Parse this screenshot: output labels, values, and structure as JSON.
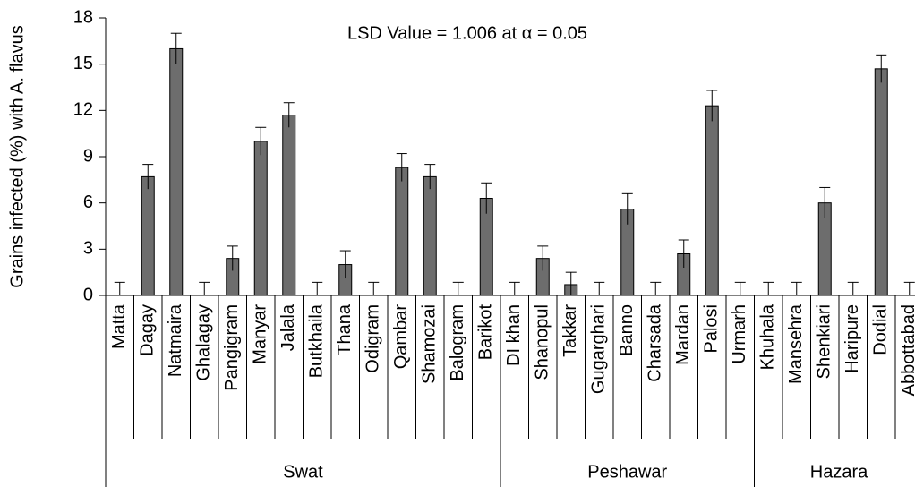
{
  "chart_data": {
    "type": "bar",
    "annotation": "LSD Value = 1.006 at α = 0.05",
    "y_label": "Grains infected (%) with A. flavus",
    "ylim": [
      0,
      18
    ],
    "yticks": [
      0,
      3,
      6,
      9,
      12,
      15,
      18
    ],
    "color": "#6d6d6d",
    "groups": [
      {
        "label": "Swat",
        "categories": [
          "Matta",
          "Dagay",
          "Natmaira",
          "Ghalagay",
          "Pangigram",
          "Manyar",
          "Jalala",
          "Butkhaila",
          "Thana",
          "Odigram",
          "Qambar",
          "Shamozai",
          "Balogram",
          "Barikot"
        ],
        "values": [
          0,
          7.7,
          16,
          0,
          2.4,
          10,
          11.7,
          0,
          2,
          0,
          8.3,
          7.7,
          0,
          6.3
        ],
        "errors": [
          0.85,
          0.8,
          1.0,
          0.85,
          0.8,
          0.9,
          0.8,
          0.85,
          0.9,
          0.85,
          0.9,
          0.8,
          0.85,
          1.0
        ]
      },
      {
        "label": "Peshawar",
        "categories": [
          "DI khan",
          "Shanopul",
          "Takkar",
          "Gugarghari",
          "Banno",
          "Charsada",
          "Mardan",
          "Palosi",
          "Urmarh"
        ],
        "values": [
          0,
          2.4,
          0.7,
          0,
          5.6,
          0,
          2.7,
          12.3,
          0
        ],
        "errors": [
          0.85,
          0.8,
          0.8,
          0.85,
          1.0,
          0.85,
          0.9,
          1.0,
          0.85
        ]
      },
      {
        "label": "Hazara",
        "categories": [
          "Khuhala",
          "Mansehra",
          "Shenkiari",
          "Haripure",
          "Dodial",
          "Abbottabad"
        ],
        "values": [
          0,
          0,
          6,
          0,
          14.7,
          0
        ],
        "errors": [
          0.85,
          0.85,
          1.0,
          0.85,
          0.9,
          0.85
        ]
      }
    ]
  }
}
